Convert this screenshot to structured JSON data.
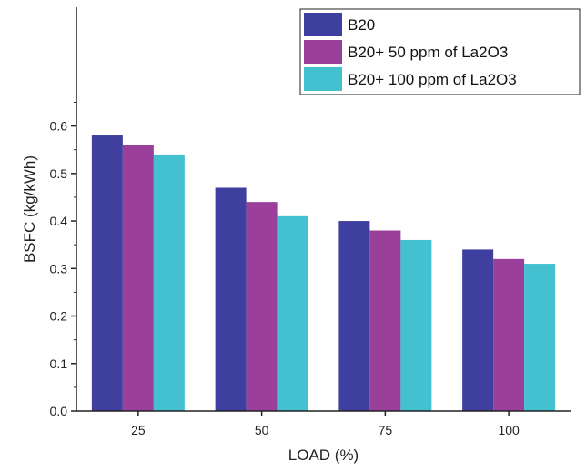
{
  "chart_data": {
    "type": "bar",
    "title": "",
    "xlabel": "LOAD (%)",
    "ylabel": "BSFC (kg/kWh)",
    "categories": [
      "25",
      "50",
      "75",
      "100"
    ],
    "ylim": [
      0,
      0.85
    ],
    "yticks": [
      "0.0",
      "0.1",
      "0.2",
      "0.3",
      "0.4",
      "0.5",
      "0.6"
    ],
    "grid": false,
    "legend_position": "top-right",
    "series": [
      {
        "name": "B20",
        "color": "#3f3fa0",
        "values": [
          0.58,
          0.47,
          0.4,
          0.34
        ]
      },
      {
        "name": "B20+ 50 ppm of La2O3",
        "color": "#9a3f9a",
        "values": [
          0.56,
          0.44,
          0.38,
          0.32
        ]
      },
      {
        "name": "B20+ 100 ppm of La2O3",
        "color": "#43c1d1",
        "values": [
          0.54,
          0.41,
          0.36,
          0.31
        ]
      }
    ]
  }
}
